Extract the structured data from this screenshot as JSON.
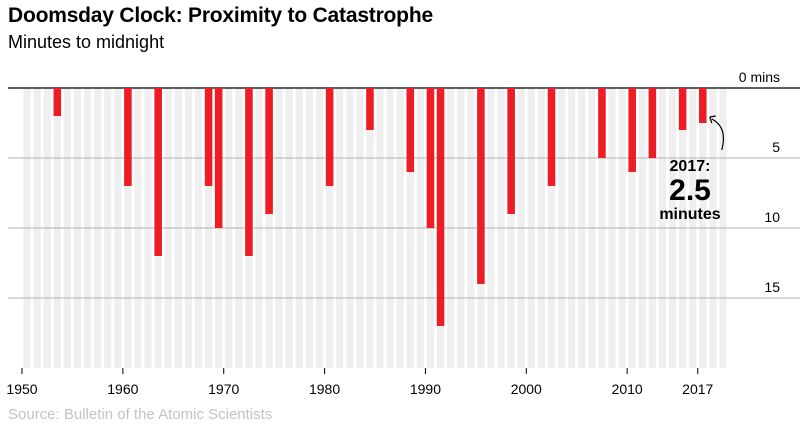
{
  "title": "Doomsday Clock: Proximity to Catastrophe",
  "subtitle": "Minutes to midnight",
  "source": "Source: Bulletin of the Atomic Scientists",
  "annotation": {
    "year": "2017:",
    "value": "2.5",
    "unit": "minutes"
  },
  "colors": {
    "bar": "#ee1c25",
    "background_stripe": "#efefef",
    "gridline": "#b0b0b0",
    "baseline": "#000000",
    "source_text": "#c3c3c3"
  },
  "chart_data": {
    "type": "bar",
    "title": "Doomsday Clock: Proximity to Catastrophe",
    "ylabel": "Minutes to midnight",
    "ylim": [
      0,
      19
    ],
    "y_inverted": true,
    "xlim": [
      1950,
      2020
    ],
    "x_ticks": [
      {
        "value": 1950,
        "label": "1950"
      },
      {
        "value": 1960,
        "label": "1960"
      },
      {
        "value": 1970,
        "label": "1970"
      },
      {
        "value": 1980,
        "label": "1980"
      },
      {
        "value": 1990,
        "label": "1990"
      },
      {
        "value": 2000,
        "label": "2000"
      },
      {
        "value": 2010,
        "label": "2010"
      },
      {
        "value": 2017,
        "label": "2017"
      }
    ],
    "y_ticks": [
      {
        "value": 0,
        "label": "0 mins"
      },
      {
        "value": 5,
        "label": "5"
      },
      {
        "value": 10,
        "label": "10"
      },
      {
        "value": 15,
        "label": "15"
      }
    ],
    "x": [
      1953,
      1960,
      1963,
      1968,
      1969,
      1972,
      1974,
      1980,
      1984,
      1988,
      1990,
      1991,
      1995,
      1998,
      2002,
      2007,
      2010,
      2012,
      2015,
      2017
    ],
    "values": [
      2,
      7,
      12,
      7,
      10,
      12,
      9,
      7,
      3,
      6,
      10,
      17,
      14,
      9,
      7,
      5,
      6,
      5,
      3,
      2.5
    ],
    "annotations": [
      {
        "x": 2017,
        "y": 2.5,
        "text": "2017: 2.5 minutes"
      }
    ]
  }
}
